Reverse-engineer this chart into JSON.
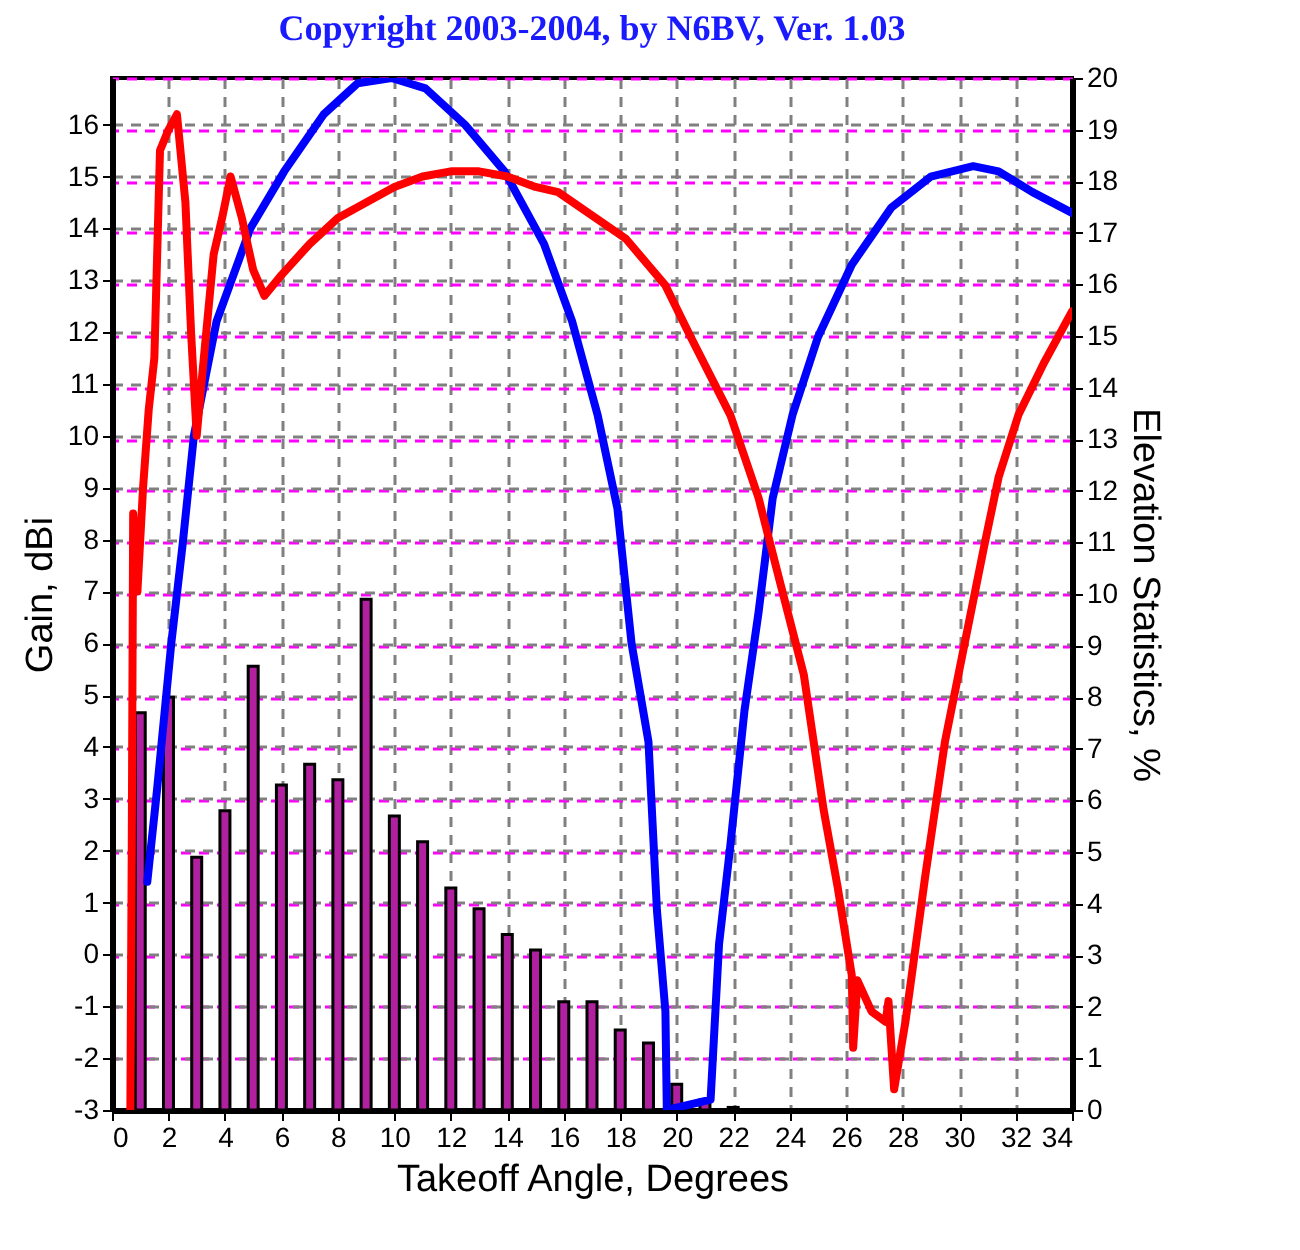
{
  "chart_data": {
    "type": "line",
    "title": "Copyright 2003-2004, by N6BV, Ver. 1.03",
    "xlabel": "Takeoff Angle, Degrees",
    "ylabel": "Gain, dBi",
    "y2label": "Elevation Statistics, %",
    "xlim": [
      0,
      34
    ],
    "xticks": [
      0,
      2,
      4,
      6,
      8,
      10,
      12,
      14,
      16,
      18,
      20,
      22,
      24,
      26,
      28,
      30,
      32,
      34
    ],
    "ylim": [
      -3,
      16.9
    ],
    "yticks": [
      -3,
      -2,
      -1,
      0,
      1,
      2,
      3,
      4,
      5,
      6,
      7,
      8,
      9,
      10,
      11,
      12,
      13,
      14,
      15,
      16
    ],
    "y2lim": [
      0,
      20
    ],
    "y2ticks": [
      0,
      1,
      2,
      3,
      4,
      5,
      6,
      7,
      8,
      9,
      10,
      11,
      12,
      13,
      14,
      15,
      16,
      17,
      18,
      19,
      20
    ],
    "grid": true,
    "series": [
      {
        "type": "bar",
        "axis": "y2",
        "color": "#b0209f",
        "x": [
          1,
          2,
          3,
          4,
          5,
          6,
          7,
          8,
          9,
          10,
          11,
          12,
          13,
          14,
          15,
          16,
          17,
          18,
          19,
          20,
          21,
          22
        ],
        "values": [
          7.7,
          8.0,
          4.9,
          5.8,
          8.6,
          6.3,
          6.7,
          6.4,
          9.9,
          5.7,
          5.2,
          4.3,
          3.9,
          3.4,
          3.1,
          2.1,
          2.1,
          1.55,
          1.3,
          0.5,
          0.2,
          0.05
        ]
      },
      {
        "color": "#0000ff",
        "x": [
          1.25,
          1.6,
          2.1,
          2.5,
          2.9,
          3.7,
          4.9,
          6.1,
          7.5,
          8.7,
          9.9,
          11.1,
          12.5,
          13.9,
          15.3,
          16.3,
          17.2,
          17.9,
          18.4,
          19.0,
          19.3,
          19.6,
          19.65,
          21.2,
          21.5,
          21.9,
          22.4,
          22.9,
          23.4,
          24.1,
          25.0,
          26.2,
          27.6,
          29.0,
          30.5,
          31.4,
          32.6,
          34.0
        ],
        "values": [
          1.4,
          3.2,
          6.0,
          7.9,
          10.0,
          12.2,
          14.0,
          15.1,
          16.2,
          16.8,
          16.9,
          16.7,
          16.0,
          15.1,
          13.7,
          12.2,
          10.4,
          8.6,
          6.0,
          4.1,
          0.85,
          -1.1,
          -3,
          -2.8,
          0.2,
          2.1,
          4.7,
          6.6,
          8.8,
          10.4,
          11.9,
          13.3,
          14.4,
          15.0,
          15.2,
          15.1,
          14.7,
          14.3
        ]
      },
      {
        "color": "#ff0000",
        "x": [
          0.65,
          0.7,
          0.75,
          0.9,
          1.1,
          1.3,
          1.5,
          1.7,
          2.0,
          2.3,
          2.6,
          2.8,
          3.0,
          3.2,
          3.6,
          3.9,
          4.2,
          4.6,
          5.0,
          5.4,
          6.0,
          7.0,
          8.0,
          9.0,
          10.0,
          11.0,
          12.0,
          13.0,
          14.0,
          15.0,
          15.8,
          18.2,
          19.6,
          20.5,
          21.9,
          22.9,
          23.6,
          24.5,
          25.2,
          25.7,
          26.2,
          26.25,
          26.4,
          26.9,
          27.4,
          27.5,
          27.7,
          28.1,
          28.8,
          29.5,
          30.2,
          30.9,
          31.4,
          32.1,
          33.0,
          34.0
        ],
        "values": [
          -3,
          2.1,
          8.5,
          7.0,
          9.0,
          10.5,
          11.5,
          15.5,
          15.9,
          16.2,
          14.5,
          12.0,
          10.0,
          11.2,
          13.5,
          14.2,
          15.0,
          14.2,
          13.2,
          12.7,
          13.1,
          13.7,
          14.2,
          14.5,
          14.8,
          15.0,
          15.1,
          15.1,
          15.0,
          14.8,
          14.7,
          13.8,
          12.9,
          11.9,
          10.4,
          8.8,
          7.3,
          5.4,
          2.8,
          1.3,
          -0.4,
          -1.8,
          -0.5,
          -1.1,
          -1.3,
          -0.9,
          -2.6,
          -1.3,
          1.5,
          4.1,
          6.0,
          7.9,
          9.2,
          10.4,
          11.4,
          12.4
        ]
      }
    ]
  }
}
